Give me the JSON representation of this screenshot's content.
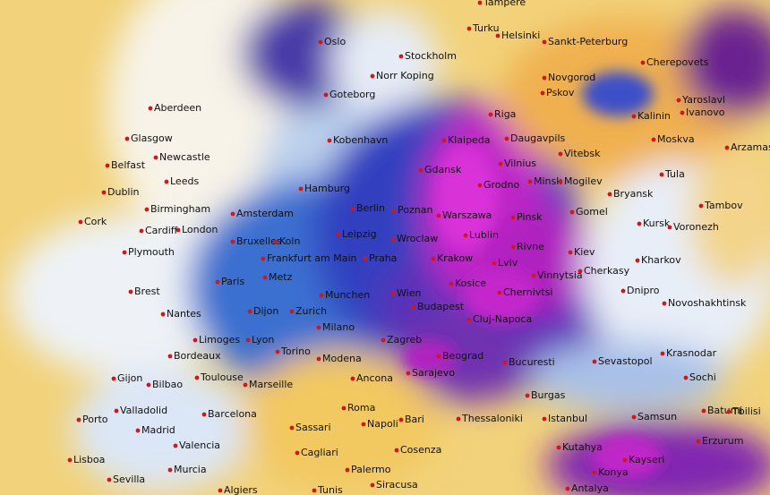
{
  "cities": [
    "Tampere",
    "Turku",
    "Helsinki",
    "Sankt-Peterburg",
    "Oslo",
    "Stockholm",
    "Norr Koping",
    "Goteborg",
    "Novgorod",
    "Cherepovets",
    "Pskov",
    "Yaroslavl",
    "Ivanovo",
    "Kalinin",
    "Aberdeen",
    "Riga",
    "Moskva",
    "Arzamas",
    "Glasgow",
    "Kobenhavn",
    "Klaipeda",
    "Daugavpils",
    "Vitebsk",
    "Newcastle",
    "Belfast",
    "Vilnius",
    "Tula",
    "Leeds",
    "Dublin",
    "Gdansk",
    "Minsk",
    "Mogilev",
    "Bryansk",
    "Hamburg",
    "Grodno",
    "Birmingham",
    "Cork",
    "Amsterdam",
    "Berlin",
    "Poznan",
    "Warszawa",
    "Pinsk",
    "Gomel",
    "Tambov",
    "Kursk",
    "Voronezh",
    "Cardiff",
    "London",
    "Bruxelles",
    "Koln",
    "Leipzig",
    "Wroclaw",
    "Lublin",
    "Rivne",
    "Kiev",
    "Plymouth",
    "Frankfurt am Main",
    "Praha",
    "Krakow",
    "Kharkov",
    "Vinnytsia",
    "Cherkasy",
    "Lviv",
    "Paris",
    "Metz",
    "Brest",
    "Wien",
    "Kosice",
    "Chernivtsi",
    "Dnipro",
    "Munchen",
    "Novoshakhtinsk",
    "Nantes",
    "Dijon",
    "Zurich",
    "Budapest",
    "Cluj-Napoca",
    "Limoges",
    "Lyon",
    "Milano",
    "Zagreb",
    "Sevastopol",
    "Krasnodar",
    "Torino",
    "Bordeaux",
    "Modena",
    "Beograd",
    "Bucuresti",
    "Sarajevo",
    "Gijon",
    "Bilbao",
    "Toulouse",
    "Marseille",
    "Ancona",
    "Sochi",
    "Burgas",
    "Batumi",
    "Tbilisi",
    "Porto",
    "Valladolid",
    "Barcelona",
    "Roma",
    "Samsun",
    "Istanbul",
    "Thessaloniki",
    "Bari",
    "Napoli",
    "Sassari",
    "Madrid",
    "Erzurum",
    "Kutahya",
    "Valencia",
    "Cagliari",
    "Cosenza",
    "Kayseri",
    "Lisboa",
    "Sevilla",
    "Murcia",
    "Palermo",
    "Antalya",
    "Algiers",
    "Tunis",
    "Siracusa",
    "Konya"
  ]
}
